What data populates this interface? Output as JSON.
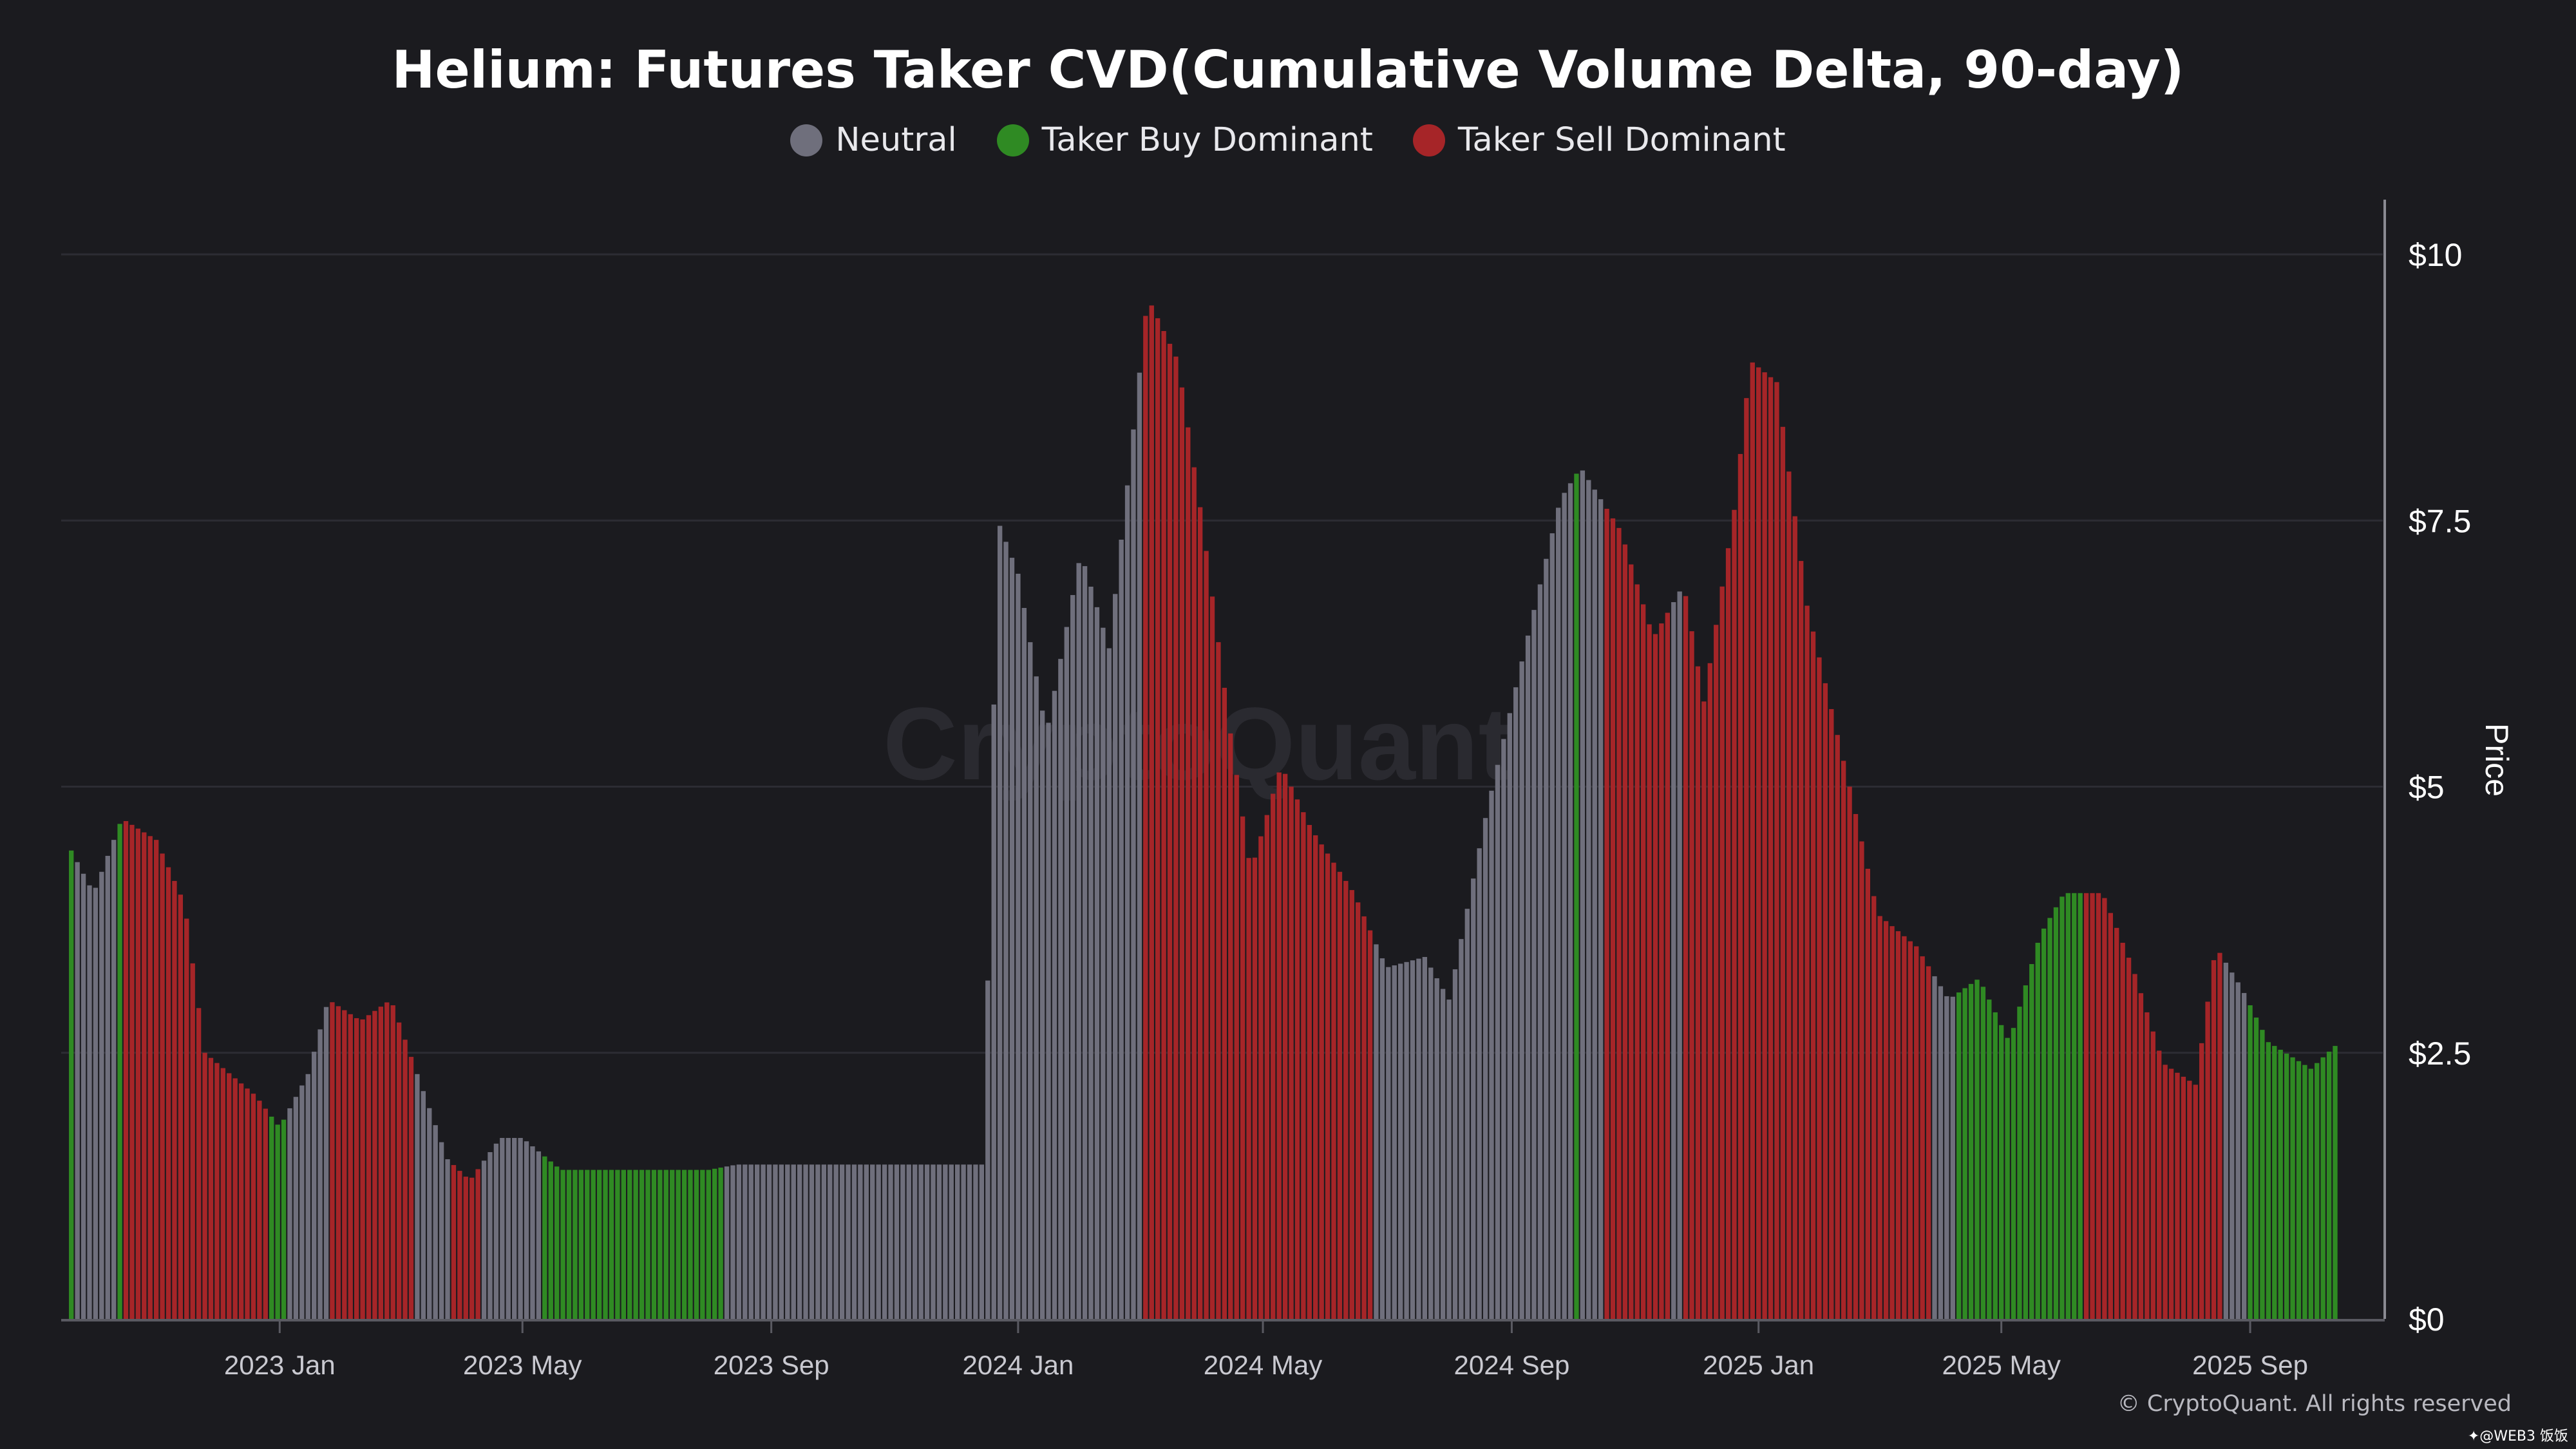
{
  "title": "Helium: Futures Taker CVD(Cumulative Volume Delta, 90-day)",
  "legend": [
    {
      "key": "neutral",
      "label": "Neutral",
      "color": "#6f6f7c"
    },
    {
      "key": "buy",
      "label": "Taker Buy Dominant",
      "color": "#2f8a23"
    },
    {
      "key": "sell",
      "label": "Taker Sell Dominant",
      "color": "#a62528"
    }
  ],
  "watermark": "CryptoQuant",
  "copyright": "© CryptoQuant. All rights reserved",
  "corner_mark": "✦@WEB3 饭饭",
  "chart_data": {
    "type": "bar",
    "x_type": "date",
    "x_range": [
      "2022-09-15",
      "2025-10-20"
    ],
    "ylabel": "Price",
    "ylim": [
      0,
      10
    ],
    "y_ticks": [
      {
        "value": 0,
        "label": "$0"
      },
      {
        "value": 2.5,
        "label": "$2.5"
      },
      {
        "value": 5,
        "label": "$5"
      },
      {
        "value": 7.5,
        "label": "$7.5"
      },
      {
        "value": 10,
        "label": "$10"
      }
    ],
    "x_ticks": [
      {
        "date": "2023-01-01",
        "label": "2023 Jan"
      },
      {
        "date": "2023-05-01",
        "label": "2023 May"
      },
      {
        "date": "2023-09-01",
        "label": "2023 Sep"
      },
      {
        "date": "2024-01-01",
        "label": "2024 Jan"
      },
      {
        "date": "2024-05-01",
        "label": "2024 May"
      },
      {
        "date": "2024-09-01",
        "label": "2024 Sep"
      },
      {
        "date": "2025-01-01",
        "label": "2025 Jan"
      },
      {
        "date": "2025-05-01",
        "label": "2025 May"
      },
      {
        "date": "2025-09-01",
        "label": "2025 Sep"
      }
    ],
    "grid": true,
    "legend_position": "top-center",
    "y_axis_position": "right",
    "price_points": [
      [
        "2022-09-20",
        4.4
      ],
      [
        "2022-10-01",
        4.0
      ],
      [
        "2022-10-15",
        4.7
      ],
      [
        "2022-11-01",
        4.5
      ],
      [
        "2022-11-15",
        3.9
      ],
      [
        "2022-11-25",
        2.5
      ],
      [
        "2022-12-20",
        2.1
      ],
      [
        "2023-01-01",
        1.8
      ],
      [
        "2023-01-15",
        2.3
      ],
      [
        "2023-01-25",
        3.0
      ],
      [
        "2023-02-10",
        2.8
      ],
      [
        "2023-02-25",
        3.0
      ],
      [
        "2023-03-10",
        2.3
      ],
      [
        "2023-03-25",
        1.5
      ],
      [
        "2023-04-05",
        1.3
      ],
      [
        "2023-04-20",
        1.7
      ],
      [
        "2023-05-01",
        1.7
      ],
      [
        "2023-05-20",
        1.4
      ],
      [
        "2023-08-01",
        1.4
      ],
      [
        "2023-08-15",
        1.45
      ],
      [
        "2023-12-15",
        1.45
      ],
      [
        "2023-12-22",
        7.5
      ],
      [
        "2024-01-01",
        7.0
      ],
      [
        "2024-01-15",
        5.5
      ],
      [
        "2024-02-01",
        7.2
      ],
      [
        "2024-02-15",
        6.3
      ],
      [
        "2024-02-25",
        8.0
      ],
      [
        "2024-03-05",
        9.6
      ],
      [
        "2024-03-20",
        9.0
      ],
      [
        "2024-04-01",
        7.5
      ],
      [
        "2024-04-15",
        5.5
      ],
      [
        "2024-04-25",
        4.2
      ],
      [
        "2024-05-10",
        5.2
      ],
      [
        "2024-05-25",
        4.6
      ],
      [
        "2024-06-15",
        4.0
      ],
      [
        "2024-07-01",
        3.3
      ],
      [
        "2024-07-20",
        3.4
      ],
      [
        "2024-08-01",
        3.0
      ],
      [
        "2024-08-20",
        4.8
      ],
      [
        "2024-09-10",
        6.5
      ],
      [
        "2024-09-25",
        7.7
      ],
      [
        "2024-10-05",
        8.0
      ],
      [
        "2024-10-25",
        7.4
      ],
      [
        "2024-11-10",
        6.4
      ],
      [
        "2024-11-25",
        6.9
      ],
      [
        "2024-12-05",
        5.8
      ],
      [
        "2024-12-20",
        7.6
      ],
      [
        "2024-12-28",
        9.0
      ],
      [
        "2025-01-10",
        8.8
      ],
      [
        "2025-01-25",
        6.7
      ],
      [
        "2025-02-15",
        5.0
      ],
      [
        "2025-03-01",
        3.8
      ],
      [
        "2025-03-20",
        3.5
      ],
      [
        "2025-04-05",
        3.0
      ],
      [
        "2025-04-20",
        3.2
      ],
      [
        "2025-05-05",
        2.6
      ],
      [
        "2025-05-20",
        3.6
      ],
      [
        "2025-06-01",
        4.0
      ],
      [
        "2025-06-20",
        4.0
      ],
      [
        "2025-07-05",
        3.3
      ],
      [
        "2025-07-20",
        2.4
      ],
      [
        "2025-08-05",
        2.2
      ],
      [
        "2025-08-15",
        3.5
      ],
      [
        "2025-08-28",
        3.1
      ],
      [
        "2025-09-10",
        2.6
      ],
      [
        "2025-10-01",
        2.35
      ],
      [
        "2025-10-15",
        2.6
      ]
    ],
    "color_segments": [
      {
        "start": "2022-09-15",
        "end": "2022-09-22",
        "regime": "buy"
      },
      {
        "start": "2022-09-22",
        "end": "2022-10-12",
        "regime": "neutral"
      },
      {
        "start": "2022-10-12",
        "end": "2022-10-16",
        "regime": "buy"
      },
      {
        "start": "2022-10-16",
        "end": "2022-12-26",
        "regime": "sell"
      },
      {
        "start": "2022-12-26",
        "end": "2023-01-06",
        "regime": "buy"
      },
      {
        "start": "2023-01-06",
        "end": "2023-01-26",
        "regime": "neutral"
      },
      {
        "start": "2023-01-26",
        "end": "2023-03-10",
        "regime": "sell"
      },
      {
        "start": "2023-03-10",
        "end": "2023-03-26",
        "regime": "neutral"
      },
      {
        "start": "2023-03-26",
        "end": "2023-04-10",
        "regime": "sell"
      },
      {
        "start": "2023-04-10",
        "end": "2023-05-10",
        "regime": "neutral"
      },
      {
        "start": "2023-05-10",
        "end": "2023-08-10",
        "regime": "buy"
      },
      {
        "start": "2023-08-10",
        "end": "2024-03-03",
        "regime": "neutral"
      },
      {
        "start": "2024-03-03",
        "end": "2024-06-25",
        "regime": "sell"
      },
      {
        "start": "2024-06-25",
        "end": "2024-10-01",
        "regime": "neutral"
      },
      {
        "start": "2024-10-01",
        "end": "2024-10-06",
        "regime": "buy"
      },
      {
        "start": "2024-10-06",
        "end": "2024-10-16",
        "regime": "neutral"
      },
      {
        "start": "2024-10-16",
        "end": "2024-11-20",
        "regime": "sell"
      },
      {
        "start": "2024-11-20",
        "end": "2024-11-24",
        "regime": "neutral"
      },
      {
        "start": "2024-11-24",
        "end": "2025-03-28",
        "regime": "sell"
      },
      {
        "start": "2025-03-28",
        "end": "2025-04-10",
        "regime": "neutral"
      },
      {
        "start": "2025-04-10",
        "end": "2025-06-12",
        "regime": "buy"
      },
      {
        "start": "2025-06-12",
        "end": "2025-08-20",
        "regime": "sell"
      },
      {
        "start": "2025-08-20",
        "end": "2025-09-01",
        "regime": "neutral"
      },
      {
        "start": "2025-09-01",
        "end": "2025-10-20",
        "regime": "buy"
      }
    ]
  }
}
